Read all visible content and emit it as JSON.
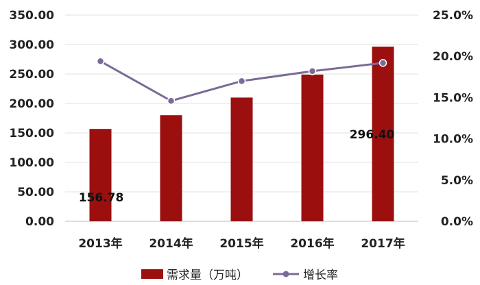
{
  "chart_data": {
    "type": "bar",
    "categories": [
      "2013年",
      "2014年",
      "2015年",
      "2016年",
      "2017年"
    ],
    "series": [
      {
        "name": "需求量（万吨）",
        "type": "bar",
        "axis": "left",
        "values": [
          156.78,
          180,
          210,
          249,
          296.4
        ],
        "color": "#9b0f0f"
      },
      {
        "name": "增长率",
        "type": "line",
        "axis": "right",
        "values": [
          19.4,
          14.6,
          17.0,
          18.2,
          19.2
        ],
        "color": "#7a6b98"
      }
    ],
    "data_labels": [
      {
        "category": "2013年",
        "text": "156.78"
      },
      {
        "category": "2017年",
        "text": "296.40"
      }
    ],
    "y_left": {
      "ylim": [
        0,
        350
      ],
      "ticks": [
        "0.00",
        "50.00",
        "100.00",
        "150.00",
        "200.00",
        "250.00",
        "300.00",
        "350.00"
      ]
    },
    "y_right": {
      "ylim": [
        0,
        25
      ],
      "ticks": [
        "0.0%",
        "5.0%",
        "10.0%",
        "15.0%",
        "20.0%",
        "25.0%"
      ]
    },
    "grid": true,
    "legend_position": "bottom"
  }
}
